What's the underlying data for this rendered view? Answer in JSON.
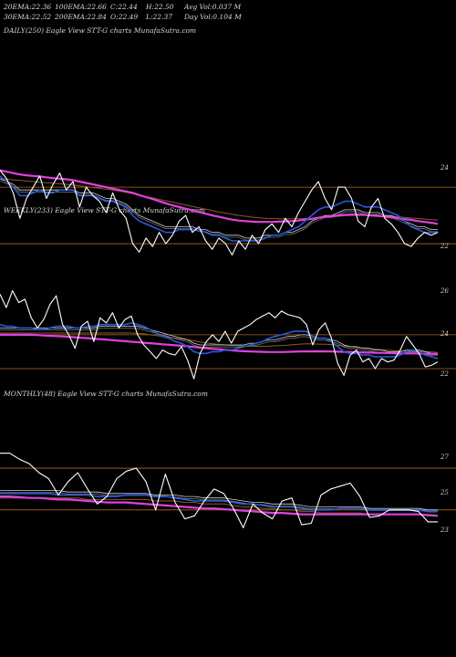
{
  "header": {
    "row1": [
      {
        "label": "20EMA:",
        "value": "22.36"
      },
      {
        "label": "100EMA:",
        "value": "22.66"
      },
      {
        "label": "C:",
        "value": "22.44"
      },
      {
        "label": "H:",
        "value": "22.50"
      },
      {
        "label": "Avg Vol:",
        "value": "0.037  M"
      }
    ],
    "row2": [
      {
        "label": "30EMA:",
        "value": "22.52"
      },
      {
        "label": "200EMA:",
        "value": "22.84"
      },
      {
        "label": "O:",
        "value": "22.49"
      },
      {
        "label": "L:",
        "value": "22.37"
      },
      {
        "label": "Day Vol:",
        "value": "0.104  M"
      }
    ]
  },
  "colors": {
    "background": "#000000",
    "price": "#ffffff",
    "ema_fast": "#2a5ad8",
    "ema_long": "#e040e0",
    "ema_slow": "#8b5a2b",
    "ema_mid": "#d0d0d0",
    "grid": "#b5651d"
  },
  "chart_data": [
    {
      "label": "DAILY(250) Eagle  View  STT-G charts MunafaSutra.com",
      "type": "line",
      "y_ticks": [
        "24",
        "22"
      ],
      "ylim": [
        21.0,
        25.2
      ],
      "gridlines": [
        24.0,
        22.0
      ],
      "series": [
        {
          "role": "price",
          "values": [
            24.6,
            24.3,
            23.8,
            22.9,
            23.6,
            24.0,
            24.4,
            23.6,
            24.1,
            24.5,
            23.9,
            24.2,
            23.3,
            24.0,
            23.7,
            23.5,
            23.1,
            23.8,
            23.2,
            22.9,
            22.0,
            21.7,
            22.2,
            21.9,
            22.4,
            22.0,
            22.3,
            22.8,
            23.0,
            22.4,
            22.6,
            22.1,
            21.8,
            22.2,
            22.0,
            21.6,
            22.1,
            21.8,
            22.3,
            22.0,
            22.5,
            22.7,
            22.4,
            22.9,
            22.6,
            23.1,
            23.5,
            23.9,
            24.2,
            23.6,
            23.2,
            24.0,
            24.0,
            23.6,
            22.8,
            22.6,
            23.3,
            23.6,
            22.9,
            22.7,
            22.4,
            22.0,
            21.9,
            22.2,
            22.4,
            22.3,
            22.4
          ]
        },
        {
          "role": "ema_fast",
          "values": [
            24.4,
            24.2,
            24.0,
            23.7,
            23.7,
            23.8,
            23.9,
            23.8,
            23.8,
            23.9,
            23.9,
            23.9,
            23.7,
            23.7,
            23.7,
            23.6,
            23.5,
            23.5,
            23.4,
            23.3,
            23.0,
            22.8,
            22.7,
            22.6,
            22.5,
            22.4,
            22.4,
            22.5,
            22.5,
            22.5,
            22.5,
            22.4,
            22.3,
            22.3,
            22.2,
            22.1,
            22.1,
            22.1,
            22.1,
            22.1,
            22.2,
            22.3,
            22.3,
            22.4,
            22.5,
            22.6,
            22.8,
            23.0,
            23.2,
            23.3,
            23.3,
            23.4,
            23.5,
            23.5,
            23.4,
            23.3,
            23.3,
            23.3,
            23.2,
            23.1,
            23.0,
            22.8,
            22.6,
            22.5,
            22.4,
            22.4,
            22.4
          ]
        },
        {
          "role": "ema_mid",
          "values": [
            24.3,
            24.2,
            24.1,
            23.9,
            23.9,
            23.9,
            23.9,
            23.9,
            23.9,
            23.9,
            23.9,
            23.9,
            23.8,
            23.8,
            23.8,
            23.7,
            23.6,
            23.6,
            23.5,
            23.4,
            23.2,
            23.0,
            22.9,
            22.8,
            22.7,
            22.6,
            22.6,
            22.6,
            22.6,
            22.6,
            22.5,
            22.5,
            22.4,
            22.4,
            22.3,
            22.3,
            22.3,
            22.2,
            22.2,
            22.2,
            22.3,
            22.3,
            22.3,
            22.4,
            22.4,
            22.5,
            22.6,
            22.8,
            22.9,
            23.0,
            23.0,
            23.1,
            23.2,
            23.2,
            23.2,
            23.1,
            23.1,
            23.1,
            23.0,
            23.0,
            22.9,
            22.8,
            22.7,
            22.6,
            22.6,
            22.5,
            22.5
          ]
        },
        {
          "role": "ema_long",
          "values": [
            24.6,
            24.55,
            24.5,
            24.45,
            24.42,
            24.4,
            24.38,
            24.35,
            24.32,
            24.3,
            24.28,
            24.25,
            24.2,
            24.15,
            24.1,
            24.05,
            24.0,
            23.95,
            23.9,
            23.85,
            23.8,
            23.72,
            23.65,
            23.58,
            23.5,
            23.43,
            23.36,
            23.3,
            23.24,
            23.18,
            23.12,
            23.06,
            23.0,
            22.95,
            22.9,
            22.85,
            22.82,
            22.8,
            22.78,
            22.77,
            22.77,
            22.77,
            22.78,
            22.79,
            22.8,
            22.82,
            22.85,
            22.88,
            22.92,
            22.95,
            22.97,
            23.0,
            23.02,
            23.03,
            23.03,
            23.02,
            23.0,
            22.98,
            22.96,
            22.93,
            22.9,
            22.87,
            22.84,
            22.8,
            22.77,
            22.74,
            22.7
          ]
        },
        {
          "role": "ema_slow",
          "values": [
            24.3,
            24.28,
            24.26,
            24.24,
            24.22,
            24.2,
            24.18,
            24.16,
            24.14,
            24.12,
            24.1,
            24.08,
            24.05,
            24.02,
            23.99,
            23.96,
            23.93,
            23.9,
            23.86,
            23.82,
            23.77,
            23.72,
            23.67,
            23.62,
            23.57,
            23.52,
            23.47,
            23.42,
            23.37,
            23.32,
            23.27,
            23.22,
            23.17,
            23.12,
            23.08,
            23.04,
            23.0,
            22.97,
            22.94,
            22.92,
            22.9,
            22.89,
            22.88,
            22.88,
            22.88,
            22.88,
            22.89,
            22.9,
            22.92,
            22.94,
            22.95,
            22.97,
            22.99,
            23.0,
            23.0,
            23.0,
            23.0,
            22.99,
            22.98,
            22.97,
            22.95,
            22.93,
            22.91,
            22.89,
            22.87,
            22.85,
            22.84
          ]
        }
      ]
    },
    {
      "label": "WEEKLY(233) Eagle  View  STT-G charts MunafaSutra.com",
      "type": "line",
      "y_ticks": [
        "26",
        "24",
        "22"
      ],
      "ylim": [
        20.6,
        27.6
      ],
      "gridlines": [
        24.0,
        22.0
      ],
      "series": [
        {
          "role": "price",
          "values": [
            26.4,
            25.6,
            26.6,
            25.9,
            26.1,
            25.0,
            24.4,
            24.9,
            25.8,
            26.3,
            24.6,
            24.0,
            23.2,
            24.5,
            24.8,
            23.6,
            25.0,
            24.7,
            25.3,
            24.4,
            24.9,
            25.1,
            24.0,
            23.4,
            23.0,
            22.6,
            23.1,
            22.9,
            22.8,
            23.3,
            22.5,
            21.4,
            22.9,
            23.6,
            24.0,
            23.6,
            24.2,
            23.5,
            24.2,
            24.4,
            24.6,
            24.9,
            25.1,
            25.3,
            25.0,
            25.4,
            25.2,
            25.1,
            25.0,
            24.6,
            23.4,
            24.3,
            24.7,
            23.8,
            22.3,
            21.6,
            22.8,
            23.1,
            22.4,
            22.6,
            22.0,
            22.6,
            22.4,
            22.5,
            23.1,
            23.9,
            23.4,
            22.9,
            22.1,
            22.2,
            22.4
          ]
        },
        {
          "role": "ema_fast",
          "values": [
            24.6,
            24.5,
            24.5,
            24.4,
            24.4,
            24.4,
            24.3,
            24.3,
            24.4,
            24.5,
            24.5,
            24.5,
            24.4,
            24.4,
            24.5,
            24.5,
            24.6,
            24.6,
            24.6,
            24.6,
            24.6,
            24.7,
            24.6,
            24.5,
            24.3,
            24.1,
            23.9,
            23.8,
            23.6,
            23.5,
            23.3,
            23.0,
            22.9,
            22.9,
            23.0,
            23.0,
            23.1,
            23.1,
            23.2,
            23.3,
            23.4,
            23.5,
            23.6,
            23.8,
            23.9,
            24.0,
            24.1,
            24.2,
            24.2,
            24.2,
            23.9,
            23.8,
            23.8,
            23.6,
            23.3,
            23.0,
            22.9,
            22.9,
            22.8,
            22.8,
            22.7,
            22.7,
            22.7,
            22.7,
            22.8,
            23.0,
            23.1,
            23.0,
            22.8,
            22.7,
            22.6
          ]
        },
        {
          "role": "ema_mid",
          "values": [
            24.4,
            24.4,
            24.4,
            24.4,
            24.4,
            24.4,
            24.4,
            24.4,
            24.4,
            24.4,
            24.4,
            24.4,
            24.4,
            24.4,
            24.4,
            24.4,
            24.5,
            24.5,
            24.5,
            24.5,
            24.5,
            24.5,
            24.5,
            24.4,
            24.3,
            24.2,
            24.1,
            24.0,
            23.9,
            23.8,
            23.7,
            23.5,
            23.4,
            23.4,
            23.4,
            23.4,
            23.4,
            23.4,
            23.4,
            23.4,
            23.5,
            23.5,
            23.6,
            23.7,
            23.7,
            23.8,
            23.9,
            23.9,
            24.0,
            24.0,
            23.9,
            23.8,
            23.8,
            23.7,
            23.6,
            23.4,
            23.3,
            23.3,
            23.2,
            23.2,
            23.1,
            23.1,
            23.0,
            23.0,
            23.0,
            23.1,
            23.1,
            23.1,
            23.0,
            22.9,
            22.9
          ]
        },
        {
          "role": "ema_long",
          "values": [
            24.0,
            24.0,
            24.0,
            24.0,
            24.0,
            24.0,
            23.98,
            23.96,
            23.94,
            23.92,
            23.9,
            23.88,
            23.85,
            23.82,
            23.8,
            23.77,
            23.74,
            23.71,
            23.68,
            23.65,
            23.62,
            23.59,
            23.56,
            23.53,
            23.5,
            23.47,
            23.44,
            23.41,
            23.38,
            23.35,
            23.32,
            23.28,
            23.24,
            23.2,
            23.17,
            23.14,
            23.11,
            23.08,
            23.05,
            23.03,
            23.01,
            23.0,
            22.99,
            22.98,
            22.98,
            22.98,
            22.99,
            23.0,
            23.01,
            23.02,
            23.02,
            23.02,
            23.02,
            23.01,
            23.0,
            22.99,
            22.98,
            22.97,
            22.96,
            22.95,
            22.94,
            22.93,
            22.92,
            22.91,
            22.9,
            22.9,
            22.9,
            22.89,
            22.88,
            22.87,
            22.86
          ]
        },
        {
          "role": "ema_slow",
          "values": [
            24.1,
            24.1,
            24.1,
            24.1,
            24.1,
            24.1,
            24.1,
            24.1,
            24.1,
            24.1,
            24.1,
            24.1,
            24.1,
            24.1,
            24.1,
            24.1,
            24.1,
            24.1,
            24.1,
            24.1,
            24.1,
            24.1,
            24.08,
            24.05,
            24.0,
            23.95,
            23.9,
            23.85,
            23.8,
            23.75,
            23.7,
            23.64,
            23.58,
            23.52,
            23.47,
            23.43,
            23.4,
            23.37,
            23.35,
            23.33,
            23.32,
            23.32,
            23.32,
            23.33,
            23.35,
            23.37,
            23.39,
            23.42,
            23.45,
            23.47,
            23.46,
            23.45,
            23.44,
            23.42,
            23.38,
            23.33,
            23.29,
            23.26,
            23.22,
            23.19,
            23.15,
            23.12,
            23.09,
            23.06,
            23.04,
            23.03,
            23.03,
            23.02,
            23.0,
            22.98,
            22.96
          ]
        }
      ]
    },
    {
      "label": "MONTHLY(48) Eagle  View  STT-G charts MunafaSutra.com",
      "type": "line",
      "y_ticks": [
        "27",
        "25",
        "23"
      ],
      "ylim": [
        20.0,
        28.2
      ],
      "gridlines": [
        26.3,
        23.5
      ],
      "series": [
        {
          "role": "price",
          "values": [
            27.3,
            27.3,
            26.9,
            26.6,
            26.0,
            25.6,
            24.5,
            25.4,
            26.0,
            24.9,
            23.9,
            24.4,
            25.6,
            26.1,
            26.3,
            25.4,
            23.5,
            25.9,
            24.0,
            22.9,
            23.1,
            24.1,
            24.9,
            24.6,
            23.6,
            22.3,
            23.9,
            23.3,
            22.9,
            24.1,
            24.3,
            22.5,
            22.6,
            24.5,
            24.9,
            25.1,
            25.3,
            24.4,
            23.0,
            23.1,
            23.5,
            23.5,
            23.5,
            23.4,
            22.7,
            22.7
          ]
        },
        {
          "role": "ema_fast",
          "values": [
            24.6,
            24.6,
            24.6,
            24.6,
            24.6,
            24.6,
            24.5,
            24.5,
            24.5,
            24.5,
            24.4,
            24.4,
            24.4,
            24.5,
            24.5,
            24.5,
            24.4,
            24.4,
            24.3,
            24.2,
            24.1,
            24.1,
            24.1,
            24.1,
            24.0,
            23.9,
            23.9,
            23.8,
            23.7,
            23.7,
            23.7,
            23.6,
            23.5,
            23.5,
            23.5,
            23.6,
            23.6,
            23.6,
            23.5,
            23.5,
            23.5,
            23.5,
            23.5,
            23.5,
            23.4,
            23.4
          ]
        },
        {
          "role": "ema_mid",
          "values": [
            24.8,
            24.8,
            24.8,
            24.8,
            24.8,
            24.8,
            24.8,
            24.7,
            24.7,
            24.7,
            24.7,
            24.6,
            24.6,
            24.6,
            24.6,
            24.6,
            24.5,
            24.5,
            24.5,
            24.4,
            24.4,
            24.3,
            24.3,
            24.3,
            24.2,
            24.1,
            24.0,
            24.0,
            23.9,
            23.9,
            23.9,
            23.8,
            23.7,
            23.7,
            23.7,
            23.7,
            23.7,
            23.7,
            23.6,
            23.6,
            23.6,
            23.6,
            23.6,
            23.6,
            23.5,
            23.5
          ]
        },
        {
          "role": "ema_long",
          "values": [
            24.4,
            24.4,
            24.35,
            24.3,
            24.3,
            24.25,
            24.2,
            24.2,
            24.15,
            24.1,
            24.05,
            24.0,
            24.0,
            24.0,
            23.95,
            23.9,
            23.85,
            23.8,
            23.75,
            23.7,
            23.65,
            23.6,
            23.6,
            23.55,
            23.5,
            23.45,
            23.4,
            23.35,
            23.3,
            23.3,
            23.25,
            23.2,
            23.2,
            23.2,
            23.2,
            23.2,
            23.2,
            23.2,
            23.2,
            23.2,
            23.2,
            23.2,
            23.2,
            23.2,
            23.15,
            23.1
          ]
        },
        {
          "role": "ema_slow",
          "values": [
            24.3,
            24.3,
            24.3,
            24.3,
            24.3,
            24.3,
            24.3,
            24.3,
            24.3,
            24.2,
            24.2,
            24.2,
            24.2,
            24.2,
            24.2,
            24.2,
            24.1,
            24.1,
            24.1,
            24.0,
            24.0,
            23.9,
            23.9,
            23.9,
            23.8,
            23.7,
            23.7,
            23.6,
            23.6,
            23.5,
            23.5,
            23.4,
            23.4,
            23.3,
            23.3,
            23.3,
            23.3,
            23.3,
            23.2,
            23.2,
            23.2,
            23.2,
            23.2,
            23.2,
            23.1,
            23.1
          ]
        }
      ]
    }
  ]
}
